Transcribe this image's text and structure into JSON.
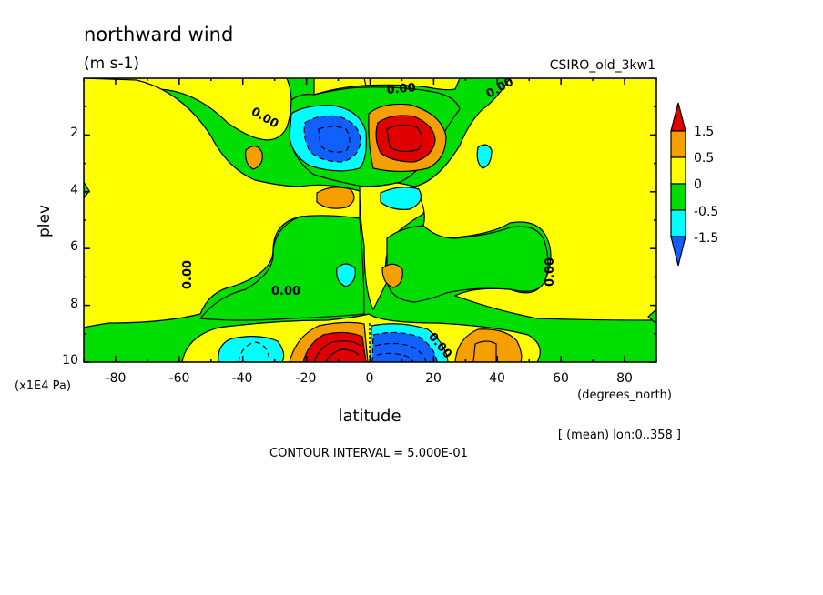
{
  "chart_data": {
    "type": "contour",
    "title": "northward wind",
    "units": "(m s-1)",
    "dataset": "CSIRO_old_3kw1",
    "xlabel": "latitude",
    "x_units": "(degrees_north)",
    "ylabel": "plev",
    "y_units": "(x1E4 Pa)",
    "xlim": [
      -90,
      90
    ],
    "ylim": [
      10,
      0
    ],
    "x_ticks": [
      "-80",
      "-60",
      "-40",
      "-20",
      "0",
      "20",
      "40",
      "60",
      "80"
    ],
    "y_ticks": [
      "2",
      "4",
      "6",
      "8",
      "10"
    ],
    "averaging_note": "[ (mean) lon:0..358 ]",
    "contour_interval": "CONTOUR INTERVAL = 5.000E-01",
    "contour_labels": [
      "0.00",
      "0.00",
      "0.00",
      "0.00",
      "0.00",
      "0.00",
      "0.00"
    ],
    "colorbar": {
      "labels": [
        "1.5",
        "0.5",
        "0",
        "-0.5",
        "-1.5"
      ],
      "colors": [
        "#e00000",
        "#f5a000",
        "#ffff00",
        "#00dd00",
        "#00ffff",
        "#1060ff"
      ]
    },
    "features": [
      {
        "name": "upper positive max",
        "lat": 9,
        "plev": 2.2,
        "value": 1.5
      },
      {
        "name": "upper negative min",
        "lat": -9,
        "plev": 2.2,
        "value": -1.5
      },
      {
        "name": "lower positive max",
        "lat": -10,
        "plev": 9.6,
        "value": 1.5
      },
      {
        "name": "lower negative min",
        "lat": 8,
        "plev": 9.6,
        "value": -1.5
      },
      {
        "name": "lower positive",
        "lat": 38,
        "plev": 9.6,
        "value": 0.5
      },
      {
        "name": "lower negative",
        "lat": -42,
        "plev": 9.6,
        "value": -0.5
      }
    ]
  }
}
